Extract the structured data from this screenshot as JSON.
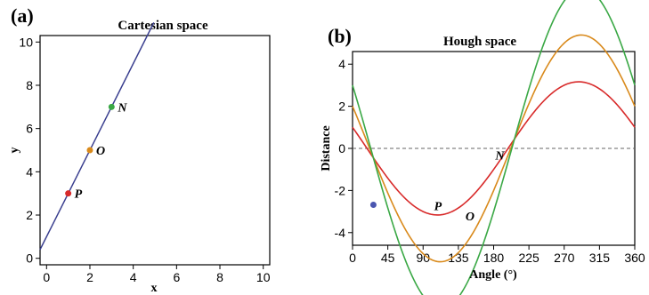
{
  "chart_data": [
    {
      "panel": "(a)",
      "type": "scatter",
      "title": "Cartesian space",
      "xlabel": "x",
      "ylabel": "y",
      "xlim": [
        -0.3,
        10.3
      ],
      "ylim": [
        -0.3,
        10.3
      ],
      "xticks": [
        0,
        2,
        4,
        6,
        8,
        10
      ],
      "yticks": [
        0,
        2,
        4,
        6,
        8,
        10
      ],
      "grid": false,
      "line": {
        "slope": 2,
        "intercept": 1,
        "color": "#3a3f8f"
      },
      "points": [
        {
          "label": "P",
          "x": 1,
          "y": 3,
          "color": "#d82a2a"
        },
        {
          "label": "O",
          "x": 2,
          "y": 5,
          "color": "#d98a1c"
        },
        {
          "label": "N",
          "x": 3,
          "y": 7,
          "color": "#3aa845"
        }
      ]
    },
    {
      "panel": "(b)",
      "type": "line",
      "title": "Hough space",
      "xlabel": "Angle (°)",
      "ylabel": "Distance",
      "xlim": [
        0,
        360
      ],
      "ylim": [
        -4.6,
        4.6
      ],
      "xticks": [
        0,
        45,
        90,
        135,
        180,
        225,
        270,
        315,
        360
      ],
      "yticks": [
        -4,
        -2,
        0,
        2,
        4
      ],
      "zero_line": "dashed",
      "grid": false,
      "series": [
        {
          "name": "P",
          "a": 1,
          "b": 3,
          "color": "#d82a2a"
        },
        {
          "name": "O",
          "a": 2,
          "b": 5,
          "color": "#d98a1c"
        },
        {
          "name": "N",
          "a": 3,
          "b": 7,
          "color": "#3aa845"
        }
      ],
      "intersection": {
        "x": 26.6,
        "y": -2.68,
        "color": "#4a56b0"
      }
    }
  ]
}
